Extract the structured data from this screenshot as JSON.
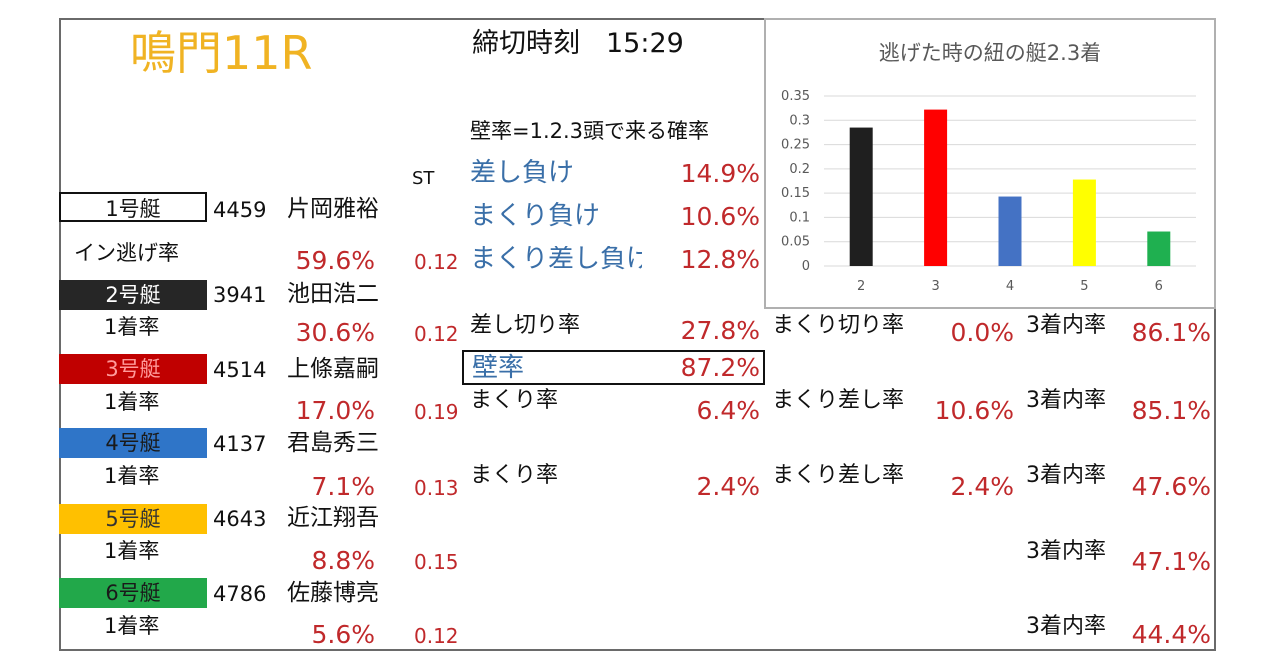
{
  "header": {
    "race_title": "鳴門11R",
    "deadline_label": "締切時刻",
    "deadline_time": "15:29"
  },
  "wall_definition": "壁率=1.2.3頭で来る確率",
  "st_header": "ST",
  "loss_rates": [
    {
      "label": "差し負け",
      "value": "14.9%"
    },
    {
      "label": "まくり負け",
      "value": "10.6%"
    },
    {
      "label": "まくり差し負け",
      "value": "12.8%"
    }
  ],
  "boats": [
    {
      "boat_label": "1号艇",
      "reg_no": "4459",
      "name": "片岡雅裕",
      "rate_label": "イン逃げ率",
      "rate_value": "59.6%",
      "st": "0.12",
      "color": "#ffffff",
      "text_color": "#111111"
    },
    {
      "boat_label": "2号艇",
      "reg_no": "3941",
      "name": "池田浩二",
      "rate_label": "1着率",
      "rate_value": "30.6%",
      "st": "0.12",
      "color": "#262626",
      "text_color": "#ffffff"
    },
    {
      "boat_label": "3号艇",
      "reg_no": "4514",
      "name": "上條嘉嗣",
      "rate_label": "1着率",
      "rate_value": "17.0%",
      "st": "0.19",
      "color": "#c00000",
      "text_color": "#ff9a9a"
    },
    {
      "boat_label": "4号艇",
      "reg_no": "4137",
      "name": "君島秀三",
      "rate_label": "1着率",
      "rate_value": "7.1%",
      "st": "0.13",
      "color": "#2f75c8",
      "text_color": "#1a1a1a"
    },
    {
      "boat_label": "5号艇",
      "reg_no": "4643",
      "name": "近江翔吾",
      "rate_label": "1着率",
      "rate_value": "8.8%",
      "st": "0.15",
      "color": "#ffc000",
      "text_color": "#333333"
    },
    {
      "boat_label": "6号艇",
      "reg_no": "4786",
      "name": "佐藤博亮",
      "rate_label": "1着率",
      "rate_value": "5.6%",
      "st": "0.12",
      "color": "#22a84a",
      "text_color": "#1a1a1a"
    }
  ],
  "stats": {
    "boat2": {
      "col1_label": "差し切り率",
      "col1_value": "27.8%",
      "col2_label": "まくり切り率",
      "col2_value": "0.0%",
      "col3_label": "3着内率",
      "col3_value": "86.1%"
    },
    "wall": {
      "label": "壁率",
      "value": "87.2%"
    },
    "boat3": {
      "col1_label": "まくり率",
      "col1_value": "6.4%",
      "col2_label": "まくり差し率",
      "col2_value": "10.6%",
      "col3_label": "3着内率",
      "col3_value": "85.1%"
    },
    "boat4": {
      "col1_label": "まくり率",
      "col1_value": "2.4%",
      "col2_label": "まくり差し率",
      "col2_value": "2.4%",
      "col3_label": "3着内率",
      "col3_value": "47.6%"
    },
    "boat5": {
      "col3_label": "3着内率",
      "col3_value": "47.1%"
    },
    "boat6": {
      "col3_label": "3着内率",
      "col3_value": "44.4%"
    }
  },
  "chart_data": {
    "type": "bar",
    "title": "逃げた時の紐の艇2.3着",
    "categories": [
      "2",
      "3",
      "4",
      "5",
      "6"
    ],
    "values": [
      0.285,
      0.322,
      0.143,
      0.178,
      0.071
    ],
    "colors": [
      "#1f1f1f",
      "#ff0000",
      "#4472c4",
      "#ffff00",
      "#1fb050"
    ],
    "ylim": [
      0,
      0.35
    ],
    "yticks": [
      "0",
      "0.05",
      "0.1",
      "0.15",
      "0.2",
      "0.25",
      "0.3",
      "0.35"
    ],
    "grid": true,
    "legend": "none",
    "xlabel": "",
    "ylabel": ""
  }
}
